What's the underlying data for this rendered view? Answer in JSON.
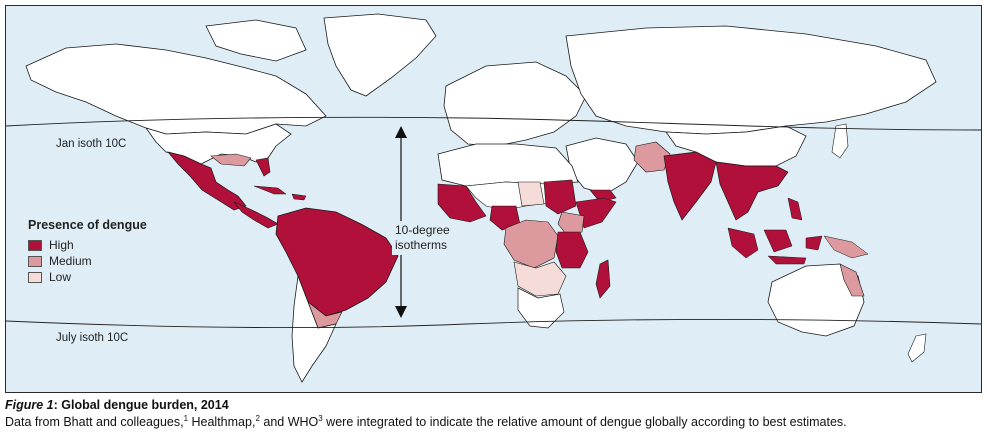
{
  "colors": {
    "ocean": "#dfeef6",
    "land_none": "#ffffff",
    "high": "#b0103a",
    "medium": "#dc9a9e",
    "low": "#f6dcd9",
    "border": "#1a1a1a"
  },
  "legend": {
    "title": "Presence of dengue",
    "items": [
      {
        "label": "High",
        "level": "high"
      },
      {
        "label": "Medium",
        "level": "medium"
      },
      {
        "label": "Low",
        "level": "low"
      }
    ]
  },
  "isotherms": {
    "north_label": "Jan isoth 10C",
    "south_label": "July isoth 10C",
    "band_label_line1": "10-degree",
    "band_label_line2": "isotherms"
  },
  "caption": {
    "figure_label": "Figure 1",
    "figure_title": ": Global dengue burden, 2014",
    "text_part1": "Data from Bhatt and colleagues,",
    "ref1": "1",
    "text_part2": " Healthmap,",
    "ref2": "2",
    "text_part3": " and WHO",
    "ref3": "3",
    "text_part4": " were integrated to indicate the relative amount of dengue globally according to best estimates."
  }
}
